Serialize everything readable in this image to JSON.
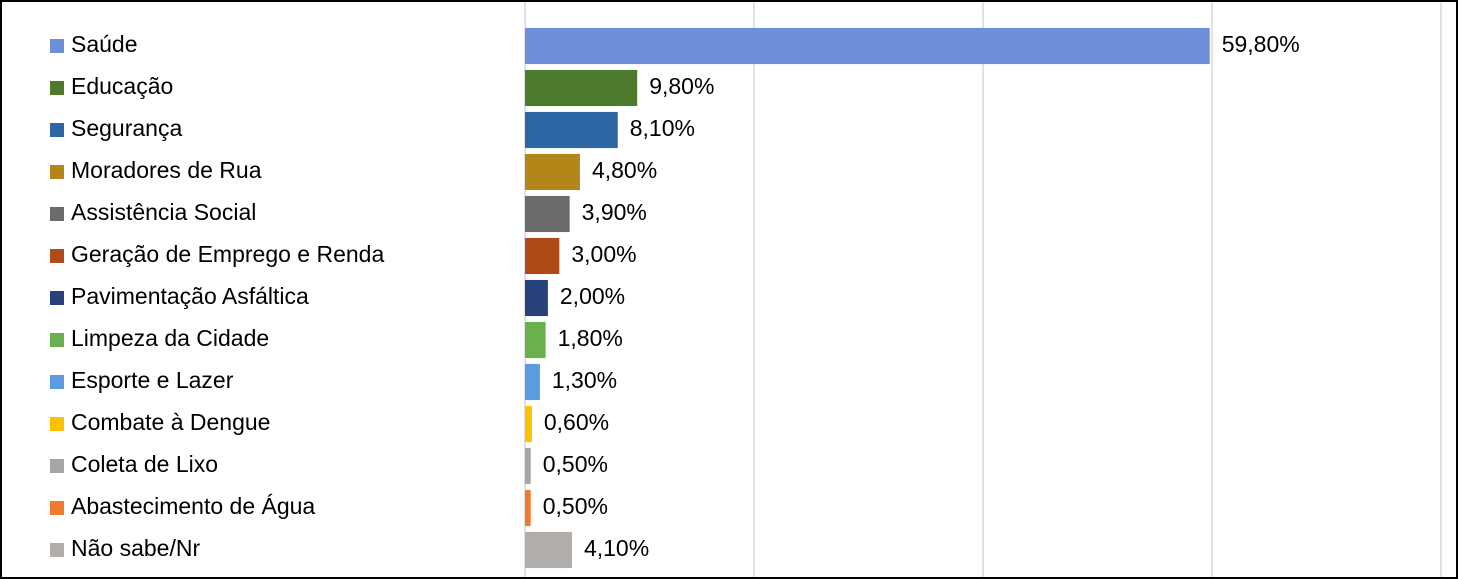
{
  "chart_data": {
    "type": "barh",
    "categories": [
      "Saúde",
      "Educação",
      "Segurança",
      "Moradores de Rua",
      "Assistência Social",
      "Geração de Emprego e Renda",
      "Pavimentação Asfáltica",
      "Limpeza da Cidade",
      "Esporte e Lazer",
      "Combate à Dengue",
      "Coleta de Lixo",
      "Abastecimento de Água",
      "Não sabe/Nr"
    ],
    "values": [
      59.8,
      9.8,
      8.1,
      4.8,
      3.9,
      3.0,
      2.0,
      1.8,
      1.3,
      0.6,
      0.5,
      0.5,
      4.1
    ],
    "value_labels": [
      "59,80%",
      "9,80%",
      "8,10%",
      "4,80%",
      "3,90%",
      "3,00%",
      "2,00%",
      "1,80%",
      "1,30%",
      "0,60%",
      "0,50%",
      "0,50%",
      "4,10%"
    ],
    "colors": [
      "#6d8fd9",
      "#4e7a2e",
      "#2d65a2",
      "#b3861a",
      "#6b6b6b",
      "#b04a17",
      "#27427a",
      "#6ab04c",
      "#5b9be0",
      "#ffc000",
      "#a6a6a6",
      "#f07a30",
      "#b0adab"
    ],
    "xlim": [
      0,
      80
    ],
    "xticks": [
      0,
      20,
      40,
      60,
      80
    ],
    "grid": true
  }
}
